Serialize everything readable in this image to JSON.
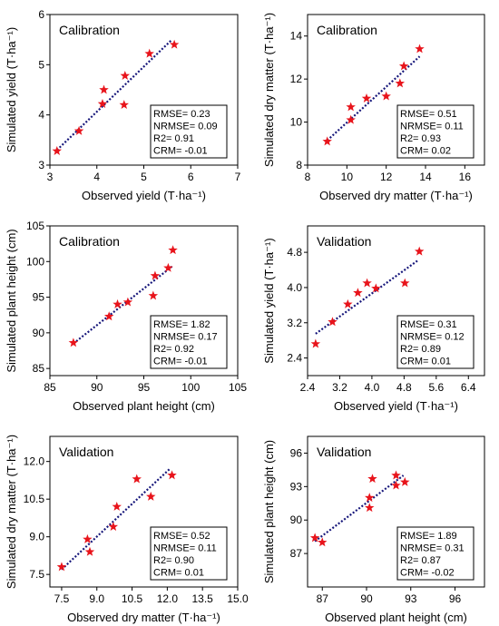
{
  "chart_data": [
    {
      "type": "scatter",
      "title": "Calibration",
      "xlabel": "Observed yield (T·ha⁻¹)",
      "ylabel": "Simulated  yield (T·ha⁻¹)",
      "xlim": [
        3,
        7
      ],
      "ylim": [
        3,
        6
      ],
      "xticks": [
        "3",
        "4",
        "5",
        "6",
        "7"
      ],
      "yticks": [
        "3",
        "4",
        "5",
        "6"
      ],
      "points": [
        {
          "x": 3.15,
          "y": 3.28
        },
        {
          "x": 3.62,
          "y": 3.68
        },
        {
          "x": 4.12,
          "y": 4.22
        },
        {
          "x": 4.15,
          "y": 4.5
        },
        {
          "x": 4.58,
          "y": 4.2
        },
        {
          "x": 4.6,
          "y": 4.78
        },
        {
          "x": 5.12,
          "y": 5.22
        },
        {
          "x": 5.65,
          "y": 5.4
        }
      ],
      "fit": [
        [
          3.15,
          3.3
        ],
        [
          5.6,
          5.5
        ]
      ],
      "stats": [
        "RMSE= 0.23",
        "NRMSE= 0.09",
        "R2= 0.91",
        "CRM= -0.01"
      ]
    },
    {
      "type": "scatter",
      "title": "Calibration",
      "xlabel": "Observed dry matter (T·ha⁻¹)",
      "ylabel": "Simulated dry matter (T·ha⁻¹)",
      "xlim": [
        8,
        17
      ],
      "ylim": [
        8,
        15
      ],
      "xticks": [
        "8",
        "10",
        "12",
        "14",
        "16"
      ],
      "yticks": [
        "8",
        "10",
        "12",
        "14"
      ],
      "points": [
        {
          "x": 9.0,
          "y": 9.1
        },
        {
          "x": 10.2,
          "y": 10.1
        },
        {
          "x": 10.2,
          "y": 10.7
        },
        {
          "x": 11.0,
          "y": 11.1
        },
        {
          "x": 12.0,
          "y": 11.2
        },
        {
          "x": 12.7,
          "y": 11.8
        },
        {
          "x": 12.9,
          "y": 12.6
        },
        {
          "x": 13.7,
          "y": 13.4
        }
      ],
      "fit": [
        [
          9.0,
          9.15
        ],
        [
          13.7,
          13.05
        ]
      ],
      "stats": [
        "RMSE= 0.51",
        "NRMSE= 0.11",
        "R2= 0.93",
        "CRM= 0.02"
      ]
    },
    {
      "type": "scatter",
      "title": "Calibration",
      "xlabel": "Observed plant height (cm)",
      "ylabel": "Simulated plant height (cm)",
      "xlim": [
        85,
        105
      ],
      "ylim": [
        84,
        105
      ],
      "xticks": [
        "85",
        "90",
        "95",
        "100",
        "105"
      ],
      "yticks": [
        "85",
        "90",
        "95",
        "100",
        "105"
      ],
      "points": [
        {
          "x": 87.5,
          "y": 88.6
        },
        {
          "x": 91.3,
          "y": 92.3
        },
        {
          "x": 92.2,
          "y": 94.0
        },
        {
          "x": 93.3,
          "y": 94.3
        },
        {
          "x": 96.0,
          "y": 95.2
        },
        {
          "x": 96.2,
          "y": 98.0
        },
        {
          "x": 97.6,
          "y": 99.1
        },
        {
          "x": 98.1,
          "y": 101.6
        }
      ],
      "fit": [
        [
          87.5,
          88.5
        ],
        [
          98.0,
          99.3
        ]
      ],
      "stats": [
        "RMSE= 1.82",
        "NRMSE= 0.17",
        "R2= 0.92",
        "CRM= -0.01"
      ]
    },
    {
      "type": "scatter",
      "title": "Validation",
      "xlabel": "Observed yield (T·ha⁻¹)",
      "ylabel": "Simulated  yield (T·ha⁻¹)",
      "xlim": [
        2.4,
        6.8
      ],
      "ylim": [
        2.0,
        5.4
      ],
      "xticks": [
        "2.4",
        "3.2",
        "4.0",
        "4.8",
        "5.6",
        "6.4"
      ],
      "yticks": [
        "2.4",
        "3.2",
        "4.0",
        "4.8"
      ],
      "points": [
        {
          "x": 2.6,
          "y": 2.72
        },
        {
          "x": 3.02,
          "y": 3.22
        },
        {
          "x": 3.4,
          "y": 3.62
        },
        {
          "x": 3.65,
          "y": 3.88
        },
        {
          "x": 3.88,
          "y": 4.1
        },
        {
          "x": 4.1,
          "y": 3.98
        },
        {
          "x": 4.82,
          "y": 4.1
        },
        {
          "x": 5.18,
          "y": 4.82
        }
      ],
      "fit": [
        [
          2.6,
          2.95
        ],
        [
          5.15,
          4.62
        ]
      ],
      "stats": [
        "RMSE= 0.31",
        "NRMSE= 0.12",
        "R2= 0.89",
        "CRM= 0.01"
      ]
    },
    {
      "type": "scatter",
      "title": "Validation",
      "xlabel": "Observed dry matter (T·ha⁻¹)",
      "ylabel": "Simulated dry matter (T·ha⁻¹)",
      "xlim": [
        7.0,
        15.0
      ],
      "ylim": [
        7.0,
        13.0
      ],
      "xticks": [
        "7.5",
        "9.0",
        "10.5",
        "12.0",
        "13.5",
        "15.0"
      ],
      "yticks": [
        "7.5",
        "9.0",
        "10.5",
        "12.0"
      ],
      "points": [
        {
          "x": 7.5,
          "y": 7.8
        },
        {
          "x": 8.6,
          "y": 8.9
        },
        {
          "x": 8.7,
          "y": 8.4
        },
        {
          "x": 9.7,
          "y": 9.4
        },
        {
          "x": 9.85,
          "y": 10.2
        },
        {
          "x": 10.7,
          "y": 11.3
        },
        {
          "x": 11.3,
          "y": 10.6
        },
        {
          "x": 12.2,
          "y": 11.45
        }
      ],
      "fit": [
        [
          7.5,
          7.7
        ],
        [
          12.1,
          11.7
        ]
      ],
      "stats": [
        "RMSE= 0.52",
        "NRMSE= 0.11",
        "R2= 0.90",
        "CRM= 0.01"
      ]
    },
    {
      "type": "scatter",
      "title": "Validation",
      "xlabel": "Observed plant height (cm)",
      "ylabel": "Simulated plant height (cm)",
      "xlim": [
        86,
        98
      ],
      "ylim": [
        84,
        97.5
      ],
      "xticks": [
        "87",
        "90",
        "93",
        "96"
      ],
      "yticks": [
        "87",
        "90",
        "93",
        "96"
      ],
      "points": [
        {
          "x": 86.5,
          "y": 88.4
        },
        {
          "x": 87.0,
          "y": 88.0
        },
        {
          "x": 90.2,
          "y": 91.1
        },
        {
          "x": 90.2,
          "y": 92.0
        },
        {
          "x": 90.4,
          "y": 93.7
        },
        {
          "x": 92.0,
          "y": 93.1
        },
        {
          "x": 92.0,
          "y": 94.0
        },
        {
          "x": 92.6,
          "y": 93.4
        }
      ],
      "fit": [
        [
          86.5,
          88.1
        ],
        [
          92.5,
          94.0
        ]
      ],
      "stats": [
        "RMSE= 1.89",
        "NRMSE= 0.31",
        "R2= 0.87",
        "CRM= -0.02"
      ]
    }
  ],
  "colors": {
    "marker": "#e8141b",
    "fit_line": "#16167a",
    "axis": "#000000"
  }
}
